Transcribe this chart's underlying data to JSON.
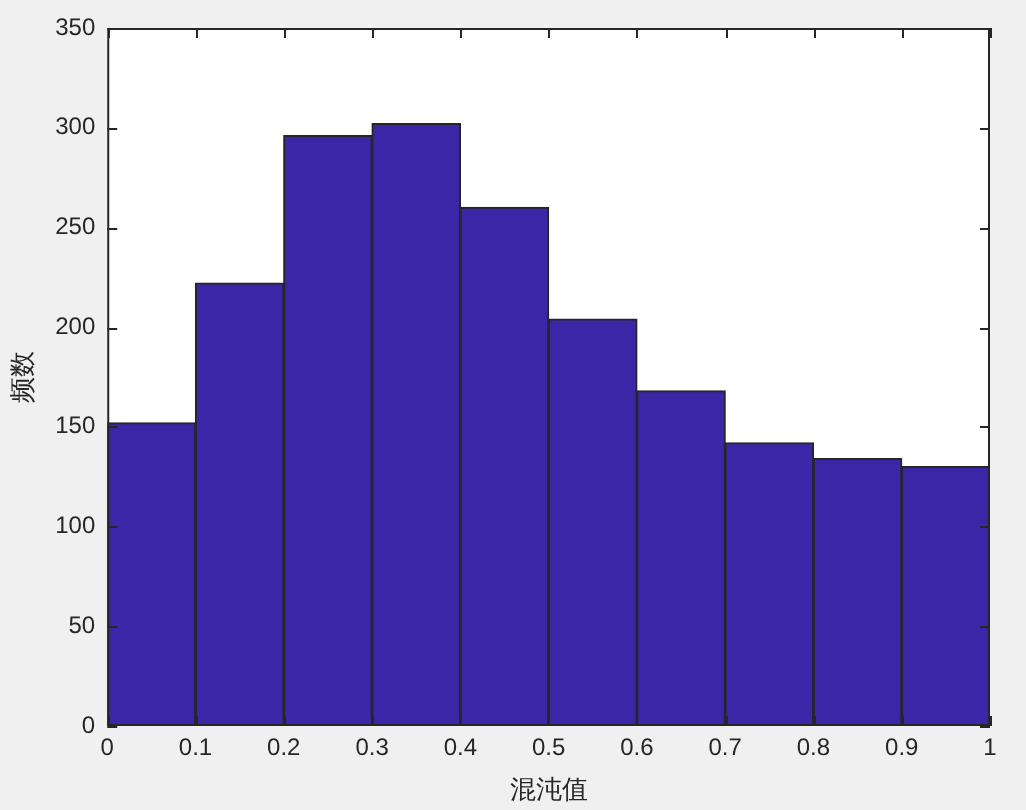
{
  "chart_data": {
    "type": "histogram",
    "xlabel": "混沌值",
    "ylabel": "频数",
    "bins": [
      0,
      0.1,
      0.2,
      0.3,
      0.4,
      0.5,
      0.6,
      0.7,
      0.8,
      0.9,
      1
    ],
    "values": [
      152,
      222,
      296,
      302,
      260,
      204,
      168,
      142,
      134,
      130
    ],
    "color": "#3c26a8",
    "xlim": [
      0,
      1
    ],
    "xticks": [
      0,
      0.1,
      0.2,
      0.3,
      0.4,
      0.5,
      0.6,
      0.7,
      0.8,
      0.9,
      1
    ],
    "ylim": [
      0,
      350
    ],
    "yticks": [
      0,
      50,
      100,
      150,
      200,
      250,
      300,
      350
    ],
    "grid": false,
    "legend": false
  }
}
